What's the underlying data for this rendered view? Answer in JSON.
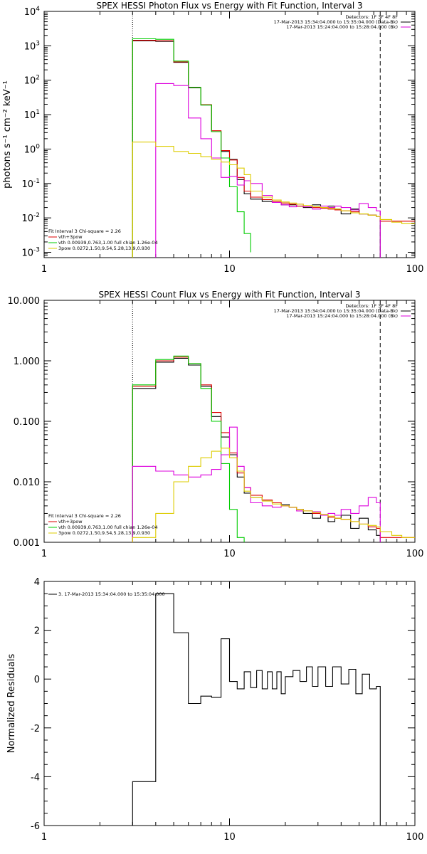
{
  "chart_data": [
    {
      "type": "line",
      "title": "SPEX HESSI Photon Flux vs Energy with Fit Function, Interval 3",
      "xlabel": "",
      "ylabel": "photons s⁻¹ cm⁻² keV⁻¹",
      "xscale": "log",
      "yscale": "log",
      "xlim": [
        1,
        100
      ],
      "ylim": [
        0.0007,
        10000
      ],
      "x_ticks": [
        "1",
        "10",
        "100"
      ],
      "y_ticks": [
        {
          "v": 0.001,
          "base": "10",
          "exp": "-3"
        },
        {
          "v": 0.01,
          "base": "10",
          "exp": "-2"
        },
        {
          "v": 0.1,
          "base": "10",
          "exp": "-1"
        },
        {
          "v": 1,
          "base": "10",
          "exp": "0"
        },
        {
          "v": 10,
          "base": "10",
          "exp": "1"
        },
        {
          "v": 100,
          "base": "10",
          "exp": "2"
        },
        {
          "v": 1000,
          "base": "10",
          "exp": "3"
        },
        {
          "v": 10000,
          "base": "10",
          "exp": "4"
        }
      ],
      "vlines": [
        {
          "x": 3.0,
          "style": "dotted"
        },
        {
          "x": 65,
          "style": "dashed"
        }
      ],
      "header_lines": [
        {
          "text": "Detectors: 1F 3F 4F 8F",
          "color": ""
        },
        {
          "text": "17-Mar-2013 15:34:04.000 to 15:35:04.000 (Data-Bk)",
          "color": "#000000"
        },
        {
          "text": "17-Mar-2013 15:24:04.000 to 15:28:04.000 (Bk)",
          "color": "#dd00dd"
        }
      ],
      "legend_lines": [
        {
          "text": "Fit Interval 3   Chi-square = 2.26",
          "color": ""
        },
        {
          "text": "vth+3pow",
          "color": "#dd0000"
        },
        {
          "text": "vth 0.00939,0.763,1.00   full chian 1.26e-04",
          "color": "#00cc00"
        },
        {
          "text": "3pow 0.0272,1.50,9.54,5.28,13.9,0.930",
          "color": "#ddcc00"
        }
      ],
      "series": [
        {
          "color": "#000000",
          "edges": [
            3,
            4,
            5,
            6,
            7,
            8,
            9,
            10,
            11,
            12,
            13,
            15,
            17,
            19,
            21,
            23,
            25,
            28,
            31,
            34,
            37,
            40,
            45,
            50,
            56,
            62,
            65
          ],
          "values": [
            1400,
            1350,
            330,
            60,
            19,
            3.2,
            0.85,
            0.5,
            0.13,
            0.05,
            0.035,
            0.03,
            0.028,
            0.024,
            0.024,
            0.022,
            0.02,
            0.024,
            0.02,
            0.022,
            0.018,
            0.013,
            0.018,
            0.013,
            0.012,
            0.011
          ]
        },
        {
          "color": "#dd0000",
          "edges": [
            3,
            4,
            5,
            6,
            7,
            8,
            9,
            10,
            11,
            12,
            13,
            15,
            17,
            19,
            21,
            23,
            25,
            28,
            31,
            34,
            37,
            40,
            45,
            50,
            56,
            62,
            65,
            100
          ],
          "values": [
            1450,
            1400,
            340,
            62,
            19.5,
            3.4,
            0.9,
            0.48,
            0.15,
            0.06,
            0.04,
            0.034,
            0.03,
            0.027,
            0.025,
            0.022,
            0.021,
            0.02,
            0.019,
            0.018,
            0.017,
            0.016,
            0.015,
            0.013,
            0.012,
            0.011,
            0.008
          ]
        },
        {
          "color": "#00cc00",
          "edges": [
            3,
            4,
            5,
            6,
            7,
            8,
            9,
            10,
            11,
            12,
            13
          ],
          "values": [
            1600,
            1550,
            360,
            62,
            19,
            3.2,
            0.55,
            0.08,
            0.015,
            0.0035,
            0.001
          ]
        },
        {
          "color": "#dd00dd",
          "edges": [
            4,
            5,
            6,
            7,
            8,
            9,
            10,
            11,
            12,
            13,
            15,
            17,
            19,
            21,
            23,
            25,
            28,
            31,
            34,
            37,
            40,
            45,
            50,
            56,
            62,
            65
          ],
          "values": [
            80,
            70,
            8,
            2,
            0.55,
            0.15,
            0.16,
            0.09,
            0.12,
            0.1,
            0.045,
            0.028,
            0.024,
            0.021,
            0.025,
            0.021,
            0.018,
            0.022,
            0.02,
            0.022,
            0.02,
            0.017,
            0.026,
            0.02,
            0.016
          ]
        },
        {
          "color": "#ddcc00",
          "edges": [
            3,
            4,
            5,
            6,
            7,
            8,
            9,
            10,
            11,
            12,
            13,
            15,
            17,
            19,
            21,
            23,
            25,
            28,
            31,
            34,
            37,
            40,
            45,
            50,
            56,
            62,
            65,
            75,
            85,
            100
          ],
          "values": [
            1.6,
            1.2,
            0.85,
            0.75,
            0.6,
            0.5,
            0.42,
            0.35,
            0.28,
            0.18,
            0.06,
            0.04,
            0.033,
            0.029,
            0.027,
            0.025,
            0.023,
            0.021,
            0.02,
            0.019,
            0.018,
            0.016,
            0.014,
            0.013,
            0.012,
            0.011,
            0.009,
            0.0075,
            0.0068
          ]
        }
      ]
    },
    {
      "type": "line",
      "title": "SPEX HESSI Count Flux vs Energy with Fit Function, Interval 3",
      "xlabel": "",
      "ylabel": "",
      "xscale": "log",
      "yscale": "log",
      "xlim": [
        1,
        100
      ],
      "ylim": [
        0.001,
        10
      ],
      "x_ticks": [
        "1",
        "10",
        "100"
      ],
      "y_ticks": [
        {
          "v": 0.001,
          "base": "0.001",
          "exp": ""
        },
        {
          "v": 0.01,
          "base": "0.010",
          "exp": ""
        },
        {
          "v": 0.1,
          "base": "0.100",
          "exp": ""
        },
        {
          "v": 1,
          "base": "1.000",
          "exp": ""
        },
        {
          "v": 10,
          "base": "10.000",
          "exp": ""
        }
      ],
      "vlines": [
        {
          "x": 3.0,
          "style": "dotted"
        },
        {
          "x": 65,
          "style": "dashed"
        }
      ],
      "header_lines": [
        {
          "text": "Detectors: 1F 3F 4F 8F",
          "color": ""
        },
        {
          "text": "17-Mar-2013 15:34:04.000 to 15:35:04.000 (Data-Bk)",
          "color": "#000000"
        },
        {
          "text": "17-Mar-2013 15:24:04.000 to 15:28:04.000 (Bk)",
          "color": "#dd00dd"
        }
      ],
      "legend_lines": [
        {
          "text": "Fit Interval 3   Chi-square = 2.26",
          "color": ""
        },
        {
          "text": "vth+3pow",
          "color": "#dd0000"
        },
        {
          "text": "vth 0.00939,0.763,1.00   full chian 1.26e-04",
          "color": "#00cc00"
        },
        {
          "text": "3pow 0.0272,1.50,9.54,5.28,13.9,0.930",
          "color": "#ddcc00"
        }
      ],
      "series": [
        {
          "color": "#000000",
          "edges": [
            3,
            4,
            5,
            6,
            7,
            8,
            9,
            10,
            11,
            12,
            13,
            15,
            17,
            19,
            21,
            23,
            25,
            28,
            31,
            34,
            37,
            40,
            45,
            50,
            56,
            62,
            65
          ],
          "values": [
            0.35,
            0.95,
            1.1,
            0.85,
            0.38,
            0.12,
            0.055,
            0.028,
            0.012,
            0.0065,
            0.0055,
            0.005,
            0.0045,
            0.0042,
            0.0038,
            0.0035,
            0.003,
            0.0025,
            0.0028,
            0.0022,
            0.0025,
            0.0028,
            0.0017,
            0.0025,
            0.0016,
            0.0013
          ]
        },
        {
          "color": "#dd0000",
          "edges": [
            3,
            4,
            5,
            6,
            7,
            8,
            9,
            10,
            11,
            12,
            13,
            15,
            17,
            19,
            21,
            23,
            25,
            28,
            31,
            34,
            37,
            40,
            45,
            50,
            56,
            62,
            65,
            100
          ],
          "values": [
            0.38,
            1.0,
            1.15,
            0.9,
            0.4,
            0.14,
            0.065,
            0.03,
            0.014,
            0.008,
            0.006,
            0.005,
            0.0045,
            0.004,
            0.0038,
            0.0035,
            0.0033,
            0.003,
            0.0028,
            0.0026,
            0.0025,
            0.0024,
            0.0022,
            0.002,
            0.0018,
            0.0017,
            0.0012
          ]
        },
        {
          "color": "#00cc00",
          "edges": [
            3,
            4,
            5,
            6,
            7,
            8,
            9,
            10,
            11,
            12
          ],
          "values": [
            0.4,
            1.05,
            1.2,
            0.9,
            0.35,
            0.1,
            0.02,
            0.0035,
            0.0012
          ]
        },
        {
          "color": "#dd00dd",
          "edges": [
            3,
            4,
            5,
            6,
            7,
            8,
            9,
            10,
            11,
            12,
            13,
            15,
            17,
            19,
            21,
            23,
            25,
            28,
            31,
            34,
            37,
            40,
            45,
            50,
            56,
            62,
            65
          ],
          "values": [
            0.018,
            0.015,
            0.013,
            0.012,
            0.013,
            0.016,
            0.028,
            0.08,
            0.018,
            0.008,
            0.0045,
            0.004,
            0.0038,
            0.004,
            0.0038,
            0.0033,
            0.0033,
            0.0032,
            0.0028,
            0.003,
            0.0028,
            0.0035,
            0.003,
            0.004,
            0.0055,
            0.0045
          ]
        },
        {
          "color": "#ddcc00",
          "edges": [
            3,
            4,
            5,
            6,
            7,
            8,
            9,
            10,
            11,
            12,
            13,
            15,
            17,
            19,
            21,
            23,
            25,
            28,
            31,
            34,
            37,
            40,
            45,
            50,
            56,
            62,
            65,
            75,
            85,
            100
          ],
          "values": [
            0.0012,
            0.003,
            0.01,
            0.018,
            0.025,
            0.032,
            0.036,
            0.025,
            0.015,
            0.007,
            0.0055,
            0.0048,
            0.0043,
            0.004,
            0.0038,
            0.0035,
            0.0033,
            0.0031,
            0.0029,
            0.0027,
            0.0025,
            0.0024,
            0.0022,
            0.002,
            0.0019,
            0.0018,
            0.0015,
            0.0013,
            0.0012
          ]
        }
      ]
    },
    {
      "type": "line",
      "title": "",
      "xlabel": "",
      "ylabel": "Normalized Residuals",
      "xscale": "log",
      "yscale": "linear",
      "xlim": [
        1,
        100
      ],
      "ylim": [
        -6,
        4
      ],
      "x_ticks": [
        "1",
        "10",
        "100"
      ],
      "y_ticks": [
        {
          "v": -6,
          "base": "-6",
          "exp": ""
        },
        {
          "v": -4,
          "base": "-4",
          "exp": ""
        },
        {
          "v": -2,
          "base": "-2",
          "exp": ""
        },
        {
          "v": 0,
          "base": "0",
          "exp": ""
        },
        {
          "v": 2,
          "base": "2",
          "exp": ""
        },
        {
          "v": 4,
          "base": "4",
          "exp": ""
        }
      ],
      "vlines": [],
      "header_lines": [],
      "legend_lines": [
        {
          "text": "3. 17-Mar-2013 15:34:04.000 to 15:35:04.000",
          "color": "#000000"
        }
      ],
      "series": [
        {
          "color": "#000000",
          "edges": [
            3,
            4,
            5,
            6,
            7,
            8,
            9,
            10,
            11,
            12,
            13,
            14,
            15,
            16,
            17,
            18,
            19,
            20,
            22,
            24,
            26,
            28,
            30,
            33,
            36,
            40,
            44,
            48,
            52,
            57,
            62,
            65
          ],
          "values": [
            -4.2,
            3.5,
            1.9,
            -1.0,
            -0.7,
            -0.75,
            1.65,
            -0.1,
            -0.4,
            0.3,
            -0.35,
            0.35,
            -0.4,
            0.3,
            -0.4,
            0.3,
            -0.6,
            0.1,
            0.35,
            -0.1,
            0.5,
            -0.3,
            0.5,
            -0.3,
            0.5,
            -0.2,
            0.4,
            -0.6,
            0.2,
            -0.4,
            -0.3
          ]
        }
      ]
    }
  ]
}
